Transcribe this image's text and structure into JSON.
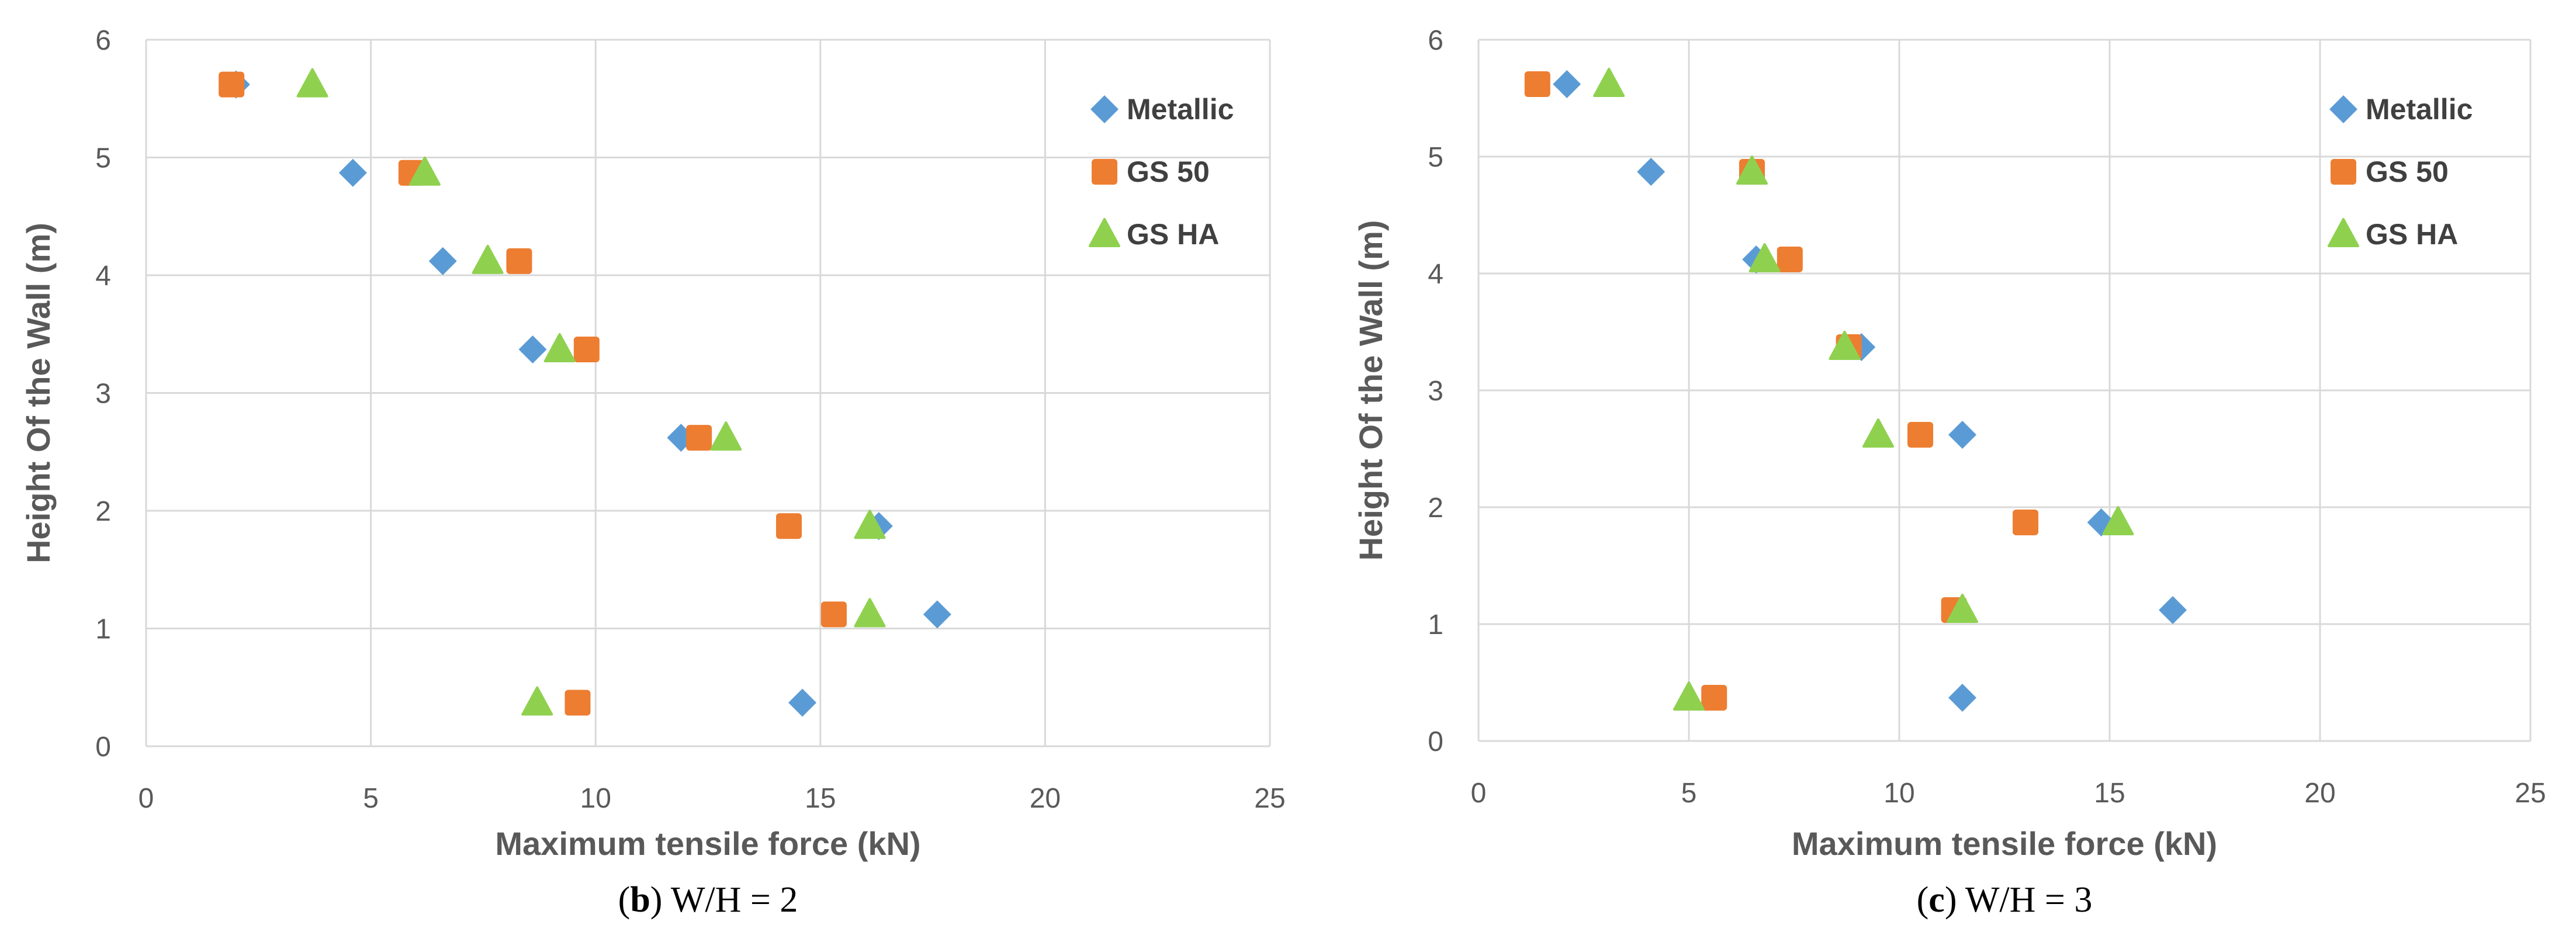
{
  "colors": {
    "metallic": "#5b9bd5",
    "gs50": "#ed7d31",
    "gsha": "#8fd14f",
    "grid": "#d9d9d9",
    "text": "#595959"
  },
  "chart_data": [
    {
      "type": "scatter",
      "id": "b",
      "caption_letter": "b",
      "caption_open": "(",
      "caption_close": ")",
      "caption_text": " W/H = 2",
      "xlabel": "Maximum tensile force (kN)",
      "ylabel": "Height Of the Wall (m)",
      "xlim": [
        0,
        25
      ],
      "ylim": [
        0,
        6
      ],
      "xticks": [
        "0",
        "5",
        "10",
        "15",
        "20",
        "25"
      ],
      "yticks": [
        "0",
        "1",
        "2",
        "3",
        "4",
        "5",
        "6"
      ],
      "grid": true,
      "legend_position": "top-right",
      "series": [
        {
          "name": "Metallic",
          "marker": "diamond",
          "color_key": "metallic",
          "points": [
            [
              14.6,
              0.37
            ],
            [
              17.6,
              1.12
            ],
            [
              16.3,
              1.87
            ],
            [
              11.9,
              2.62
            ],
            [
              8.6,
              3.37
            ],
            [
              6.6,
              4.12
            ],
            [
              4.6,
              4.87
            ],
            [
              2.0,
              5.62
            ]
          ]
        },
        {
          "name": "GS 50",
          "marker": "square",
          "color_key": "gs50",
          "points": [
            [
              9.6,
              0.37
            ],
            [
              15.3,
              1.12
            ],
            [
              14.3,
              1.87
            ],
            [
              12.3,
              2.62
            ],
            [
              9.8,
              3.37
            ],
            [
              8.3,
              4.12
            ],
            [
              5.9,
              4.87
            ],
            [
              1.9,
              5.62
            ]
          ]
        },
        {
          "name": "GS HA",
          "marker": "triangle",
          "color_key": "gsha",
          "points": [
            [
              8.7,
              0.37
            ],
            [
              16.1,
              1.12
            ],
            [
              16.1,
              1.87
            ],
            [
              12.9,
              2.62
            ],
            [
              9.2,
              3.37
            ],
            [
              7.6,
              4.12
            ],
            [
              6.2,
              4.87
            ],
            [
              3.7,
              5.62
            ]
          ]
        }
      ]
    },
    {
      "type": "scatter",
      "id": "c",
      "caption_letter": "c",
      "caption_open": "(",
      "caption_close": ")",
      "caption_text": " W/H = 3",
      "xlabel": "Maximum tensile force (kN)",
      "ylabel": "Height Of the Wall (m)",
      "xlim": [
        0,
        25
      ],
      "ylim": [
        0,
        6
      ],
      "xticks": [
        "0",
        "5",
        "10",
        "15",
        "20",
        "25"
      ],
      "yticks": [
        "0",
        "1",
        "2",
        "3",
        "4",
        "5",
        "6"
      ],
      "grid": true,
      "legend_position": "top-right",
      "series": [
        {
          "name": "Metallic",
          "marker": "diamond",
          "color_key": "metallic",
          "points": [
            [
              11.5,
              0.37
            ],
            [
              16.5,
              1.12
            ],
            [
              14.8,
              1.87
            ],
            [
              11.5,
              2.62
            ],
            [
              9.1,
              3.37
            ],
            [
              6.6,
              4.12
            ],
            [
              4.1,
              4.87
            ],
            [
              2.1,
              5.62
            ]
          ]
        },
        {
          "name": "GS 50",
          "marker": "square",
          "color_key": "gs50",
          "points": [
            [
              5.6,
              0.37
            ],
            [
              11.3,
              1.12
            ],
            [
              13.0,
              1.87
            ],
            [
              10.5,
              2.62
            ],
            [
              8.8,
              3.37
            ],
            [
              7.4,
              4.12
            ],
            [
              6.5,
              4.87
            ],
            [
              1.4,
              5.62
            ]
          ]
        },
        {
          "name": "GS HA",
          "marker": "triangle",
          "color_key": "gsha",
          "points": [
            [
              5.0,
              0.37
            ],
            [
              11.5,
              1.12
            ],
            [
              15.2,
              1.87
            ],
            [
              9.5,
              2.62
            ],
            [
              8.7,
              3.37
            ],
            [
              6.8,
              4.12
            ],
            [
              6.5,
              4.87
            ],
            [
              3.1,
              5.62
            ]
          ]
        }
      ]
    }
  ]
}
